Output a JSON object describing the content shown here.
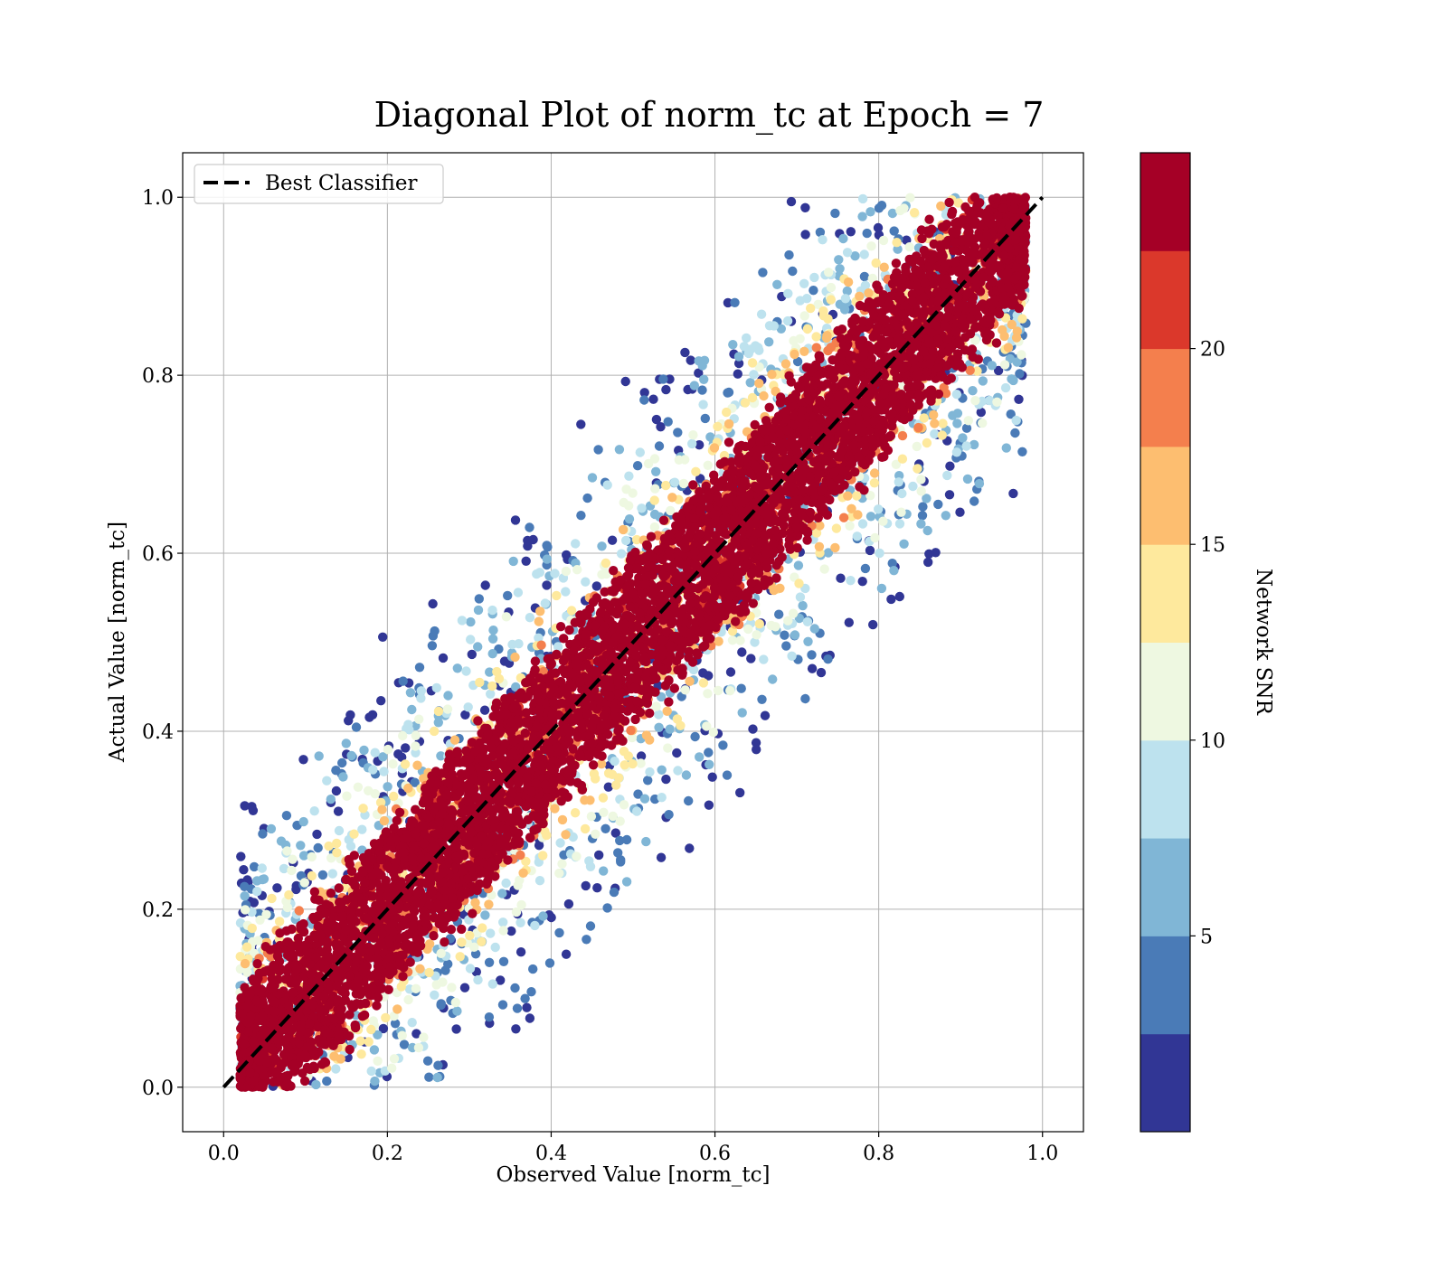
{
  "chart_data": {
    "type": "scatter",
    "title": "Diagonal Plot of norm_tc at Epoch = 7",
    "xlabel": "Observed Value [norm_tc]",
    "ylabel": "Actual Value [norm_tc]",
    "xlim": [
      -0.05,
      1.05
    ],
    "ylim": [
      -0.05,
      1.05
    ],
    "x_ticks": [
      0.0,
      0.2,
      0.4,
      0.6,
      0.8,
      1.0
    ],
    "x_tick_labels": [
      "0.0",
      "0.2",
      "0.4",
      "0.6",
      "0.8",
      "1.0"
    ],
    "y_ticks": [
      0.0,
      0.2,
      0.4,
      0.6,
      0.8,
      1.0
    ],
    "y_tick_labels": [
      "0.0",
      "0.2",
      "0.4",
      "0.6",
      "0.8",
      "1.0"
    ],
    "grid": true,
    "legend": {
      "placement": "upper-left",
      "entries": [
        {
          "label": "Best Classifier",
          "style": "dashed",
          "color": "#000000"
        }
      ]
    },
    "reference_line": {
      "label": "Best Classifier",
      "x": [
        0.0,
        1.0
      ],
      "y": [
        0.0,
        1.0
      ]
    },
    "scatter_model": {
      "description_values": "points cluster around y = x; spread widens as Network SNR decreases; x shifted up to ~0.02-0.98 range",
      "x_range": [
        0.02,
        0.98
      ],
      "y_range": [
        0.0,
        1.0
      ],
      "snr_range": [
        0,
        25
      ]
    },
    "colorbar": {
      "label": "Network SNR",
      "vmin": 0,
      "vmax": 25,
      "ticks": [
        5,
        10,
        15,
        20
      ],
      "tick_labels": [
        "5",
        "10",
        "15",
        "20"
      ],
      "colors": [
        "#313695",
        "#4575b4",
        "#74add1",
        "#abd9e9",
        "#e0f3f8",
        "#ffffbf",
        "#fee090",
        "#fdae61",
        "#f46d43",
        "#d73027",
        "#a50026"
      ],
      "bins": [
        "#313695",
        "#4a7bb7",
        "#80b6d6",
        "#bde2ee",
        "#eef8e1",
        "#fee99d",
        "#fdbe70",
        "#f47f4d",
        "#db382b",
        "#a50026"
      ]
    }
  }
}
